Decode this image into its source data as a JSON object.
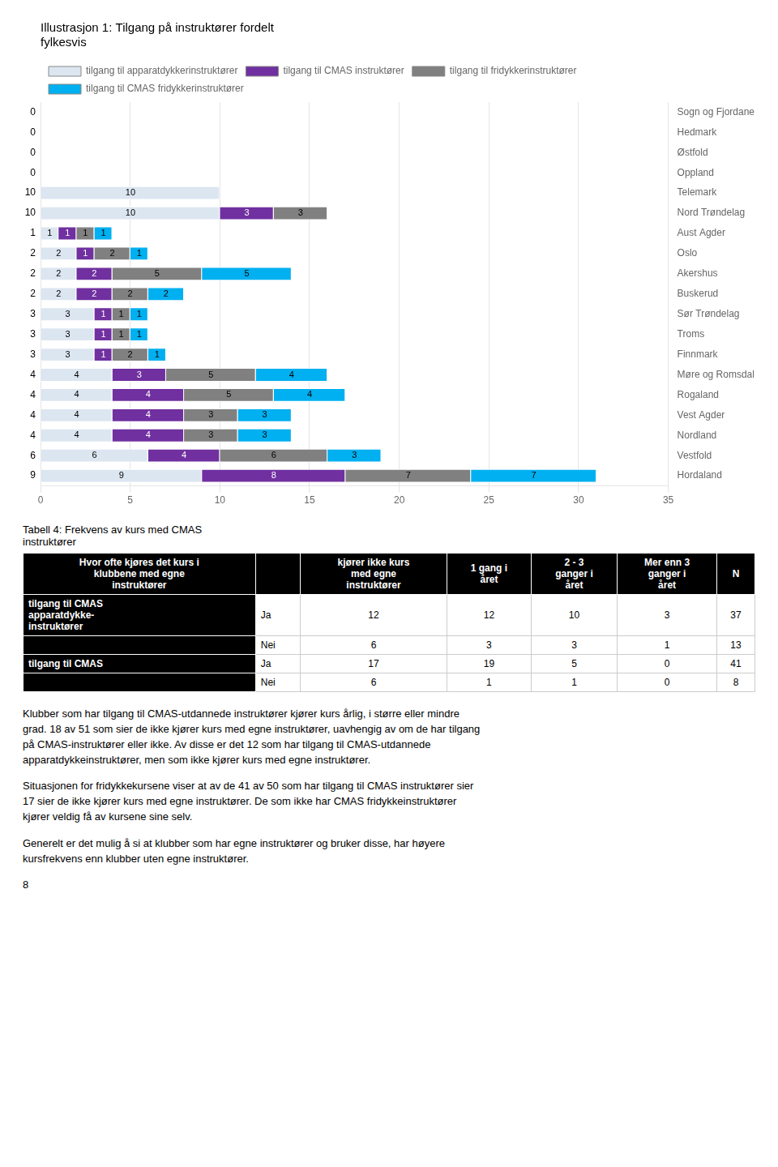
{
  "chart_data": {
    "type": "bar",
    "orientation": "horizontal",
    "stacked": true,
    "title": "Illustrasjon 1: Tilgang på instruktører fordelt\nfylkesvis",
    "categories": [
      "Sogn og Fjordane",
      "Hedmark",
      "Østfold",
      "Oppland",
      "Telemark",
      "Nord Trøndelag",
      "Aust Agder",
      "Oslo",
      "Akershus",
      "Buskerud",
      "Sør Trøndelag",
      "Troms",
      "Finnmark",
      "Møre og Romsdal",
      "Rogaland",
      "Vest Agder",
      "Nordland",
      "Vestfold",
      "Hordaland"
    ],
    "series": [
      {
        "name": "tilgang til apparatdykkerinstruktører",
        "color": "#dce6f1",
        "values": [
          0,
          0,
          0,
          0,
          10,
          10,
          1,
          2,
          2,
          2,
          3,
          3,
          3,
          4,
          4,
          4,
          4,
          6,
          9
        ]
      },
      {
        "name": "tilgang til CMAS instruktører",
        "color": "#7030a0",
        "values": [
          0,
          0,
          0,
          0,
          0,
          3,
          1,
          1,
          2,
          2,
          1,
          1,
          1,
          3,
          4,
          4,
          4,
          4,
          8
        ]
      },
      {
        "name": "tilgang til fridykkerinstruktører",
        "color": "#808080",
        "values": [
          0,
          0,
          0,
          0,
          0,
          3,
          1,
          2,
          5,
          2,
          1,
          1,
          2,
          5,
          5,
          3,
          3,
          6,
          7
        ]
      },
      {
        "name": "tilgang til CMAS fridykkerinstruktører",
        "color": "#00b0f0",
        "values": [
          0,
          0,
          0,
          0,
          0,
          0,
          1,
          1,
          5,
          2,
          1,
          1,
          1,
          4,
          4,
          3,
          3,
          3,
          7
        ]
      }
    ],
    "xlim": [
      0,
      35
    ],
    "xticks": [
      0,
      5,
      10,
      15,
      20,
      25,
      30,
      35
    ],
    "grid": "x",
    "legend": "top",
    "data_labels": true,
    "annotations": [
      {
        "y": "Sogn og Fjordane",
        "text": "0"
      },
      {
        "y": "Hedmark",
        "text": "0"
      },
      {
        "y": "Østfold",
        "text": "0"
      },
      {
        "y": "Oppland",
        "text": "0"
      },
      {
        "y": "Telemark",
        "text": "10"
      },
      {
        "y": "Nord Trøndelag",
        "text": "10"
      },
      {
        "y": "Aust Agder",
        "text": "1"
      },
      {
        "y": "Oslo",
        "text": "2"
      },
      {
        "y": "Akershus",
        "text": "2"
      },
      {
        "y": "Buskerud",
        "text": "2"
      },
      {
        "y": "Sør Trøndelag",
        "text": "3"
      },
      {
        "y": "Troms",
        "text": "3"
      },
      {
        "y": "Finnmark",
        "text": "3"
      },
      {
        "y": "Møre og Romsdal",
        "text": "4"
      },
      {
        "y": "Rogaland",
        "text": "4"
      },
      {
        "y": "Vest Agder",
        "text": "4"
      },
      {
        "y": "Nordland",
        "text": "4"
      },
      {
        "y": "Vestfold",
        "text": "6"
      },
      {
        "y": "Hordaland",
        "text": "9"
      }
    ]
  },
  "table": {
    "title": "Tabell 4: Frekvens av kurs med CMAS\ninstruktører",
    "columns": [
      "Hvor ofte kjøres det kurs i\nklubbene med egne\ninstruktører",
      null,
      "kjører ikke kurs\nmed egne\ninstruktører",
      "1 gang i\nåret",
      "2 - 3\nganger i\nåret",
      "Mer enn 3\nganger i\nåret",
      "N"
    ],
    "rows": [
      [
        "tilgang til CMAS\napparatdykke-\ninstruktører",
        "Ja",
        12,
        12,
        10,
        3,
        37
      ],
      [
        null,
        "Nei",
        6,
        3,
        3,
        1,
        13
      ],
      [
        "tilgang til CMAS",
        "Ja",
        17,
        19,
        5,
        0,
        41
      ],
      [
        null,
        "Nei",
        6,
        1,
        1,
        0,
        8
      ]
    ]
  },
  "paragraphs": [
    "Klubber som har tilgang til CMAS-utdannede instruktører kjører kurs årlig, i større eller mindre\ngrad. 18 av 51 som sier de ikke kjører kurs med egne instruktører, uavhengig av om de har tilgang\npå CMAS-instruktører eller ikke. Av disse er det 12 som har tilgang til CMAS-utdannede\napparatdykkeinstruktører, men som ikke kjører kurs med egne instruktører.",
    "Situasjonen for fridykkekursene viser at av de 41 av 50 som har tilgang til CMAS instruktører sier\n17 sier de ikke kjører kurs med egne instruktører. De som ikke har CMAS fridykkeinstruktører\nkjører veldig få av kursene sine selv.",
    "Generelt er det mulig å si at klubber som har egne instruktører og bruker disse, har høyere\nkursfrekvens enn klubber uten egne instruktører."
  ],
  "page_number": "8"
}
